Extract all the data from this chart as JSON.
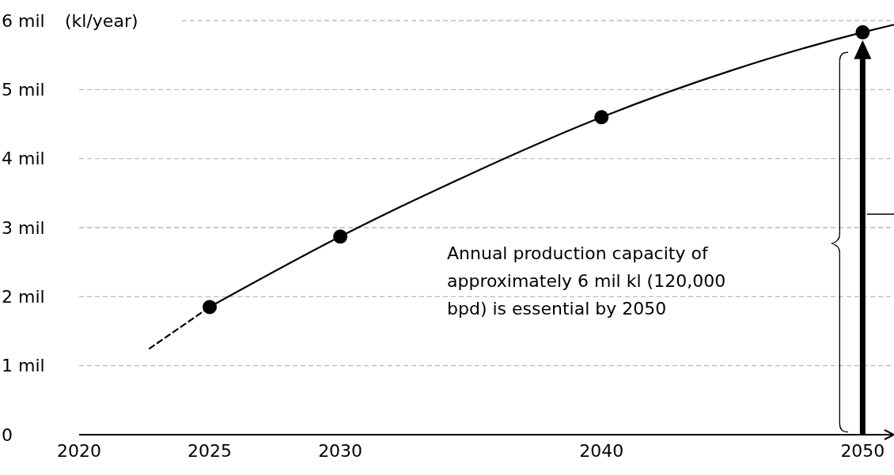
{
  "chart_data": {
    "type": "line",
    "ylabel": "(kl/year)",
    "xlim": [
      2020,
      2051.2
    ],
    "xticks": [
      2020,
      2025,
      2030,
      2040,
      2050
    ],
    "ylim": [
      0,
      6
    ],
    "yticks": [
      {
        "value": 0,
        "label": "0"
      },
      {
        "value": 1,
        "label": "1 mil"
      },
      {
        "value": 2,
        "label": "2 mil"
      },
      {
        "value": 3,
        "label": "3 mil"
      },
      {
        "value": 4,
        "label": "4 mil"
      },
      {
        "value": 5,
        "label": "5 mil"
      },
      {
        "value": 6,
        "label": "6 mil"
      }
    ],
    "grid": "y",
    "series": [
      {
        "color": "#000000",
        "line_style": "dashed",
        "marker": "none",
        "x": [
          2022.7,
          2025
        ],
        "values": [
          1.25,
          1.85
        ]
      },
      {
        "color": "#000000",
        "line_style": "solid",
        "marker": "none",
        "x": [
          2025,
          2030,
          2035,
          2040,
          2045,
          2050,
          2051.2
        ],
        "values": [
          1.85,
          2.87,
          3.78,
          4.6,
          5.28,
          5.83,
          5.94
        ]
      },
      {
        "type": "scatter",
        "color": "#000000",
        "marker": "circle",
        "x": [
          2025,
          2030,
          2040,
          2050
        ],
        "values": [
          1.85,
          2.87,
          4.6,
          5.83
        ]
      }
    ],
    "annotations": [
      "Annual production capacity of approximately 6 mil kl (120,000 bpd) is essential by 2050"
    ]
  }
}
